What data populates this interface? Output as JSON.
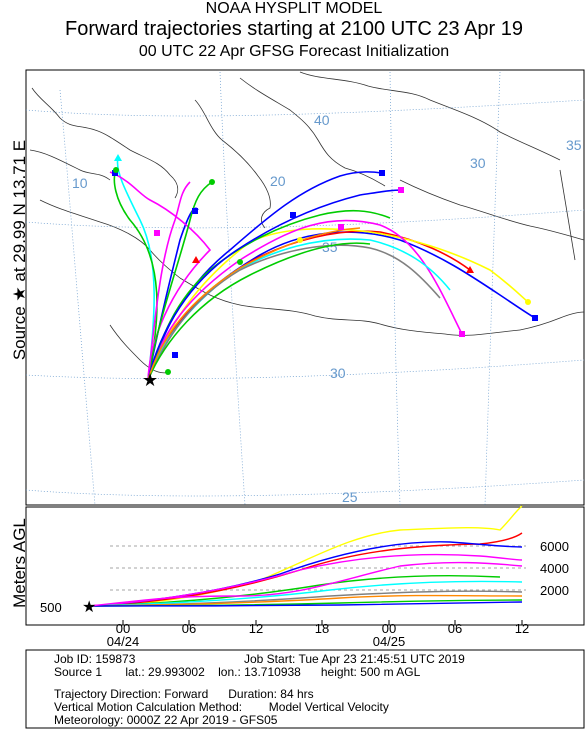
{
  "header": {
    "line1": "NOAA HYSPLIT MODEL",
    "line2": "Forward trajectories starting at 2100 UTC 23 Apr 19",
    "line3": "00 UTC 22 Apr    GFSG  Forecast Initialization"
  },
  "side_label": "Source ★  at    29.99 N   13.71 E",
  "profile": {
    "ylabel": "Meters AGL",
    "start_height_label": "500",
    "height_ticks": [
      "6000",
      "4000",
      "2000"
    ],
    "time_ticks": [
      "00",
      "06",
      "12",
      "18",
      "00",
      "06",
      "12"
    ],
    "date_labels": [
      "04/24",
      "04/25"
    ]
  },
  "map": {
    "lon_labels": [
      "10",
      "20",
      "30",
      "35"
    ],
    "lat_labels": [
      "40",
      "35",
      "30",
      "25"
    ]
  },
  "info": {
    "job_id": "Job ID: 159873",
    "job_start": "Job Start: Tue Apr 23 21:45:51 UTC 2019",
    "source": "Source 1       lat.: 29.993002    lon.: 13.710938      height: 500 m AGL",
    "direction": "Trajectory Direction: Forward      Duration: 84 hrs",
    "vertical": "Vertical Motion Calculation Method:        Model Vertical Velocity",
    "meteorology": "Meteorology: 0000Z 22 Apr 2019 - GFS05"
  },
  "colors": {
    "series": [
      "#0000ff",
      "#ff0000",
      "#00cc00",
      "#00ffff",
      "#ff00ff",
      "#ffff00",
      "#ff8800",
      "#808080",
      "#0000a0",
      "#00a0a0"
    ],
    "grid": "#6699cc"
  }
}
